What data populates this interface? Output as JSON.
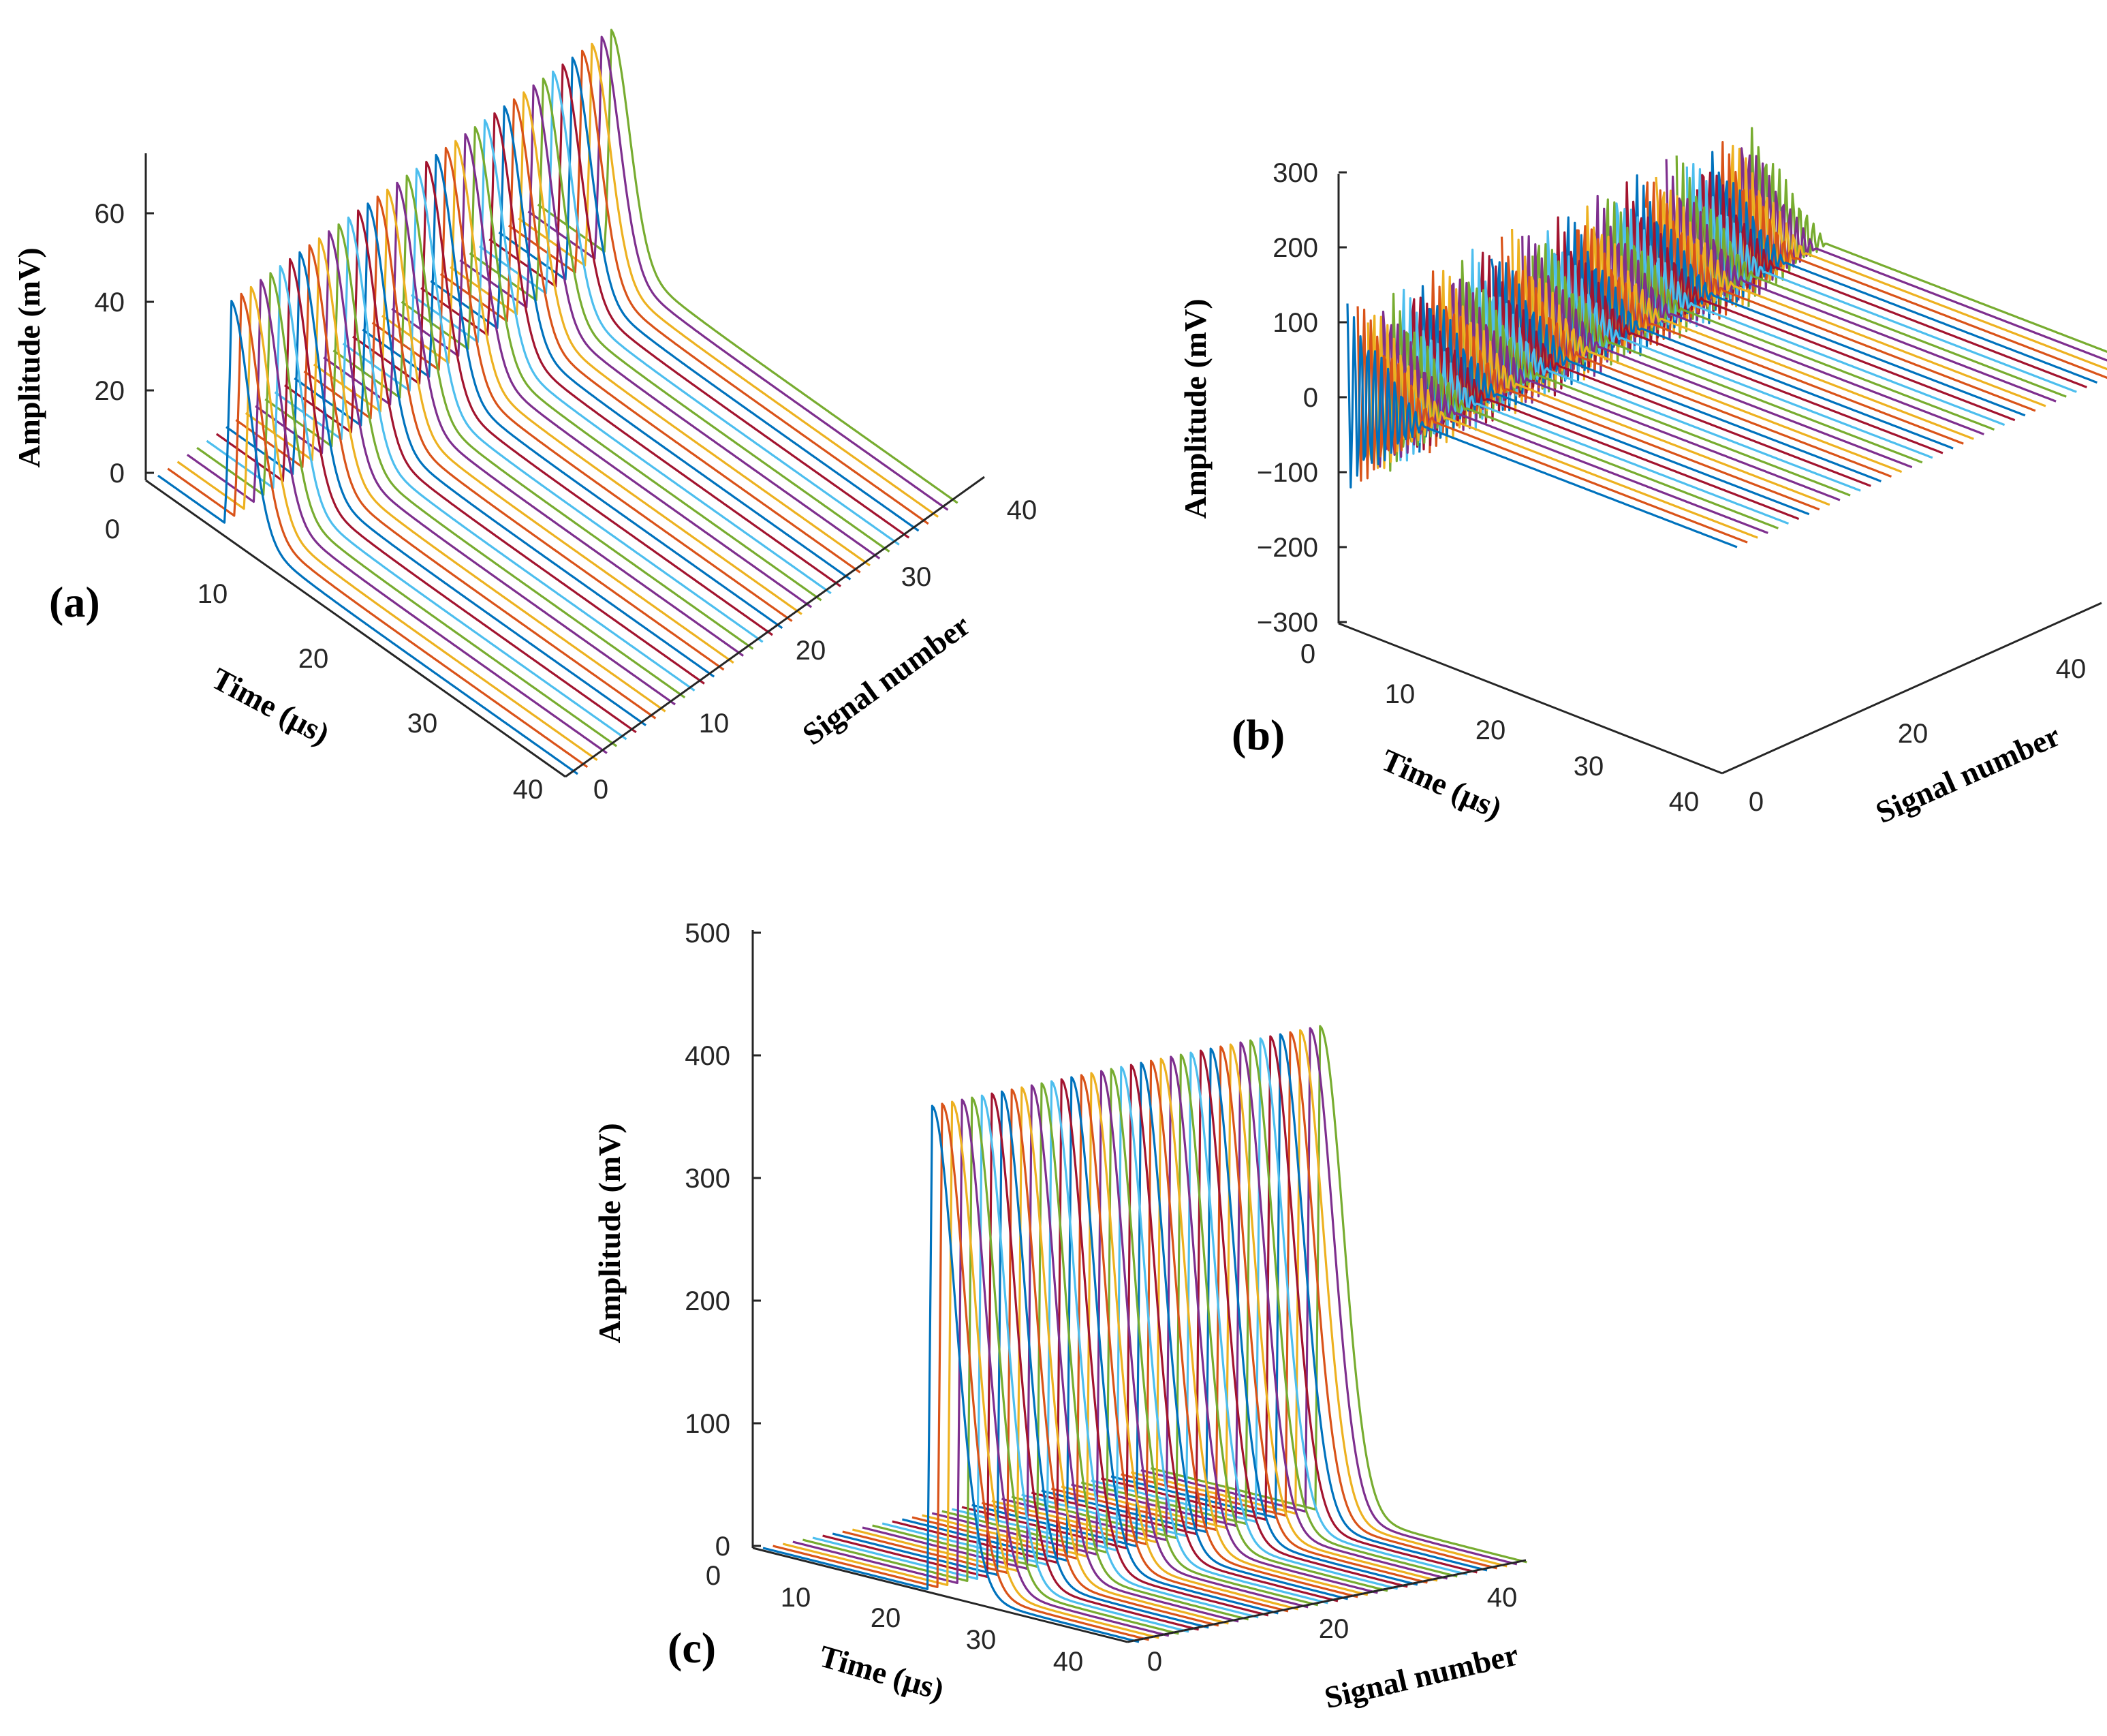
{
  "colors": [
    "#0072BD",
    "#D95319",
    "#EDB120",
    "#7E2F8E",
    "#77AC30",
    "#4DBEEE",
    "#A2142F"
  ],
  "chart_data": [
    {
      "panel": "(a)",
      "type": "line",
      "view": "3d-waterfall",
      "signal_count": 40,
      "peak_time_us": 7,
      "peak_amplitude_mV": 63,
      "zlim": [
        0,
        70
      ],
      "xlim": [
        0,
        40
      ],
      "ylim": [
        0,
        40
      ],
      "xlabel": "Time (μs)",
      "ylabel": "Signal number",
      "zlabel": "Amplitude (mV)",
      "x_ticks": [
        "0",
        "10",
        "20",
        "30",
        "40"
      ],
      "y_ticks": [
        "0",
        "10",
        "20",
        "30",
        "40"
      ],
      "z_ticks": [
        "0",
        "20",
        "40",
        "60"
      ]
    },
    {
      "panel": "(b)",
      "type": "line",
      "view": "3d-waterfall",
      "signal_count": 40,
      "peak_amplitude_mV": 250,
      "min_amplitude_mV": -250,
      "zlim": [
        -300,
        300
      ],
      "xlim": [
        0,
        40
      ],
      "ylim": [
        0,
        40
      ],
      "xlabel": "Time (μs)",
      "ylabel": "Signal number",
      "zlabel": "Amplitude (mV)",
      "x_ticks": [
        "0",
        "10",
        "20",
        "30",
        "40"
      ],
      "y_ticks": [
        "0",
        "20",
        "40"
      ],
      "z_ticks": [
        "−300",
        "−200",
        "−100",
        "0",
        "100",
        "200",
        "300"
      ]
    },
    {
      "panel": "(c)",
      "type": "line",
      "view": "3d-waterfall",
      "signal_count": 40,
      "peak_time_us": 18,
      "peak_amplitude_mV": 385,
      "zlim": [
        0,
        500
      ],
      "xlim": [
        0,
        40
      ],
      "ylim": [
        0,
        40
      ],
      "xlabel": "Time (μs)",
      "ylabel": "Signal number",
      "zlabel": "Amplitude (mV)",
      "x_ticks": [
        "0",
        "10",
        "20",
        "30",
        "40"
      ],
      "y_ticks": [
        "0",
        "20",
        "40"
      ],
      "z_ticks": [
        "0",
        "100",
        "200",
        "300",
        "400",
        "500"
      ]
    }
  ]
}
